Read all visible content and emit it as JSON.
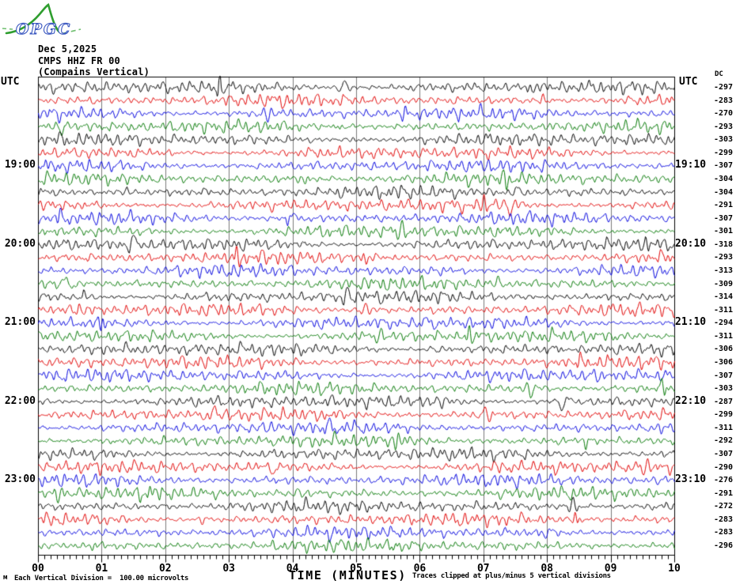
{
  "logo": {
    "text": "OPGC"
  },
  "header": {
    "date": "Dec 5,2025",
    "station": "CMPS HHZ FR 00",
    "component": "(Compains Vertical)"
  },
  "left_axis": {
    "title": "UTC",
    "labels": [
      {
        "row": 7,
        "text": "19:00"
      },
      {
        "row": 13,
        "text": "20:00"
      },
      {
        "row": 19,
        "text": "21:00"
      },
      {
        "row": 25,
        "text": "22:00"
      },
      {
        "row": 31,
        "text": "23:00"
      }
    ]
  },
  "right_axis": {
    "title": "UTC",
    "dc_header": "DC",
    "labels": [
      {
        "row": 7,
        "text": "19:10"
      },
      {
        "row": 13,
        "text": "20:10"
      },
      {
        "row": 19,
        "text": "21:10"
      },
      {
        "row": 25,
        "text": "22:10"
      },
      {
        "row": 31,
        "text": "23:10"
      }
    ],
    "dc_values": [
      -297,
      -283,
      -270,
      -293,
      -303,
      -299,
      -307,
      -304,
      -304,
      -291,
      -307,
      -301,
      -318,
      -293,
      -313,
      -309,
      -314,
      -311,
      -294,
      -311,
      -306,
      -306,
      -307,
      -303,
      -287,
      -299,
      -311,
      -292,
      -307,
      -290,
      -276,
      -291,
      -272,
      -283,
      -283,
      -296
    ]
  },
  "x_axis": {
    "title": "TIME (MINUTES)",
    "tick_labels": [
      "00",
      "01",
      "02",
      "03",
      "04",
      "05",
      "06",
      "07",
      "08",
      "09",
      "10"
    ],
    "clip_note": "Traces clipped at plus/minus 5 vertical divisions"
  },
  "footer": {
    "scale_note": "Each Vertical Division =  100.00 microvolts",
    "corner_mark": "м"
  },
  "colors": {
    "trace_cycle": [
      "#000000",
      "#e00000",
      "#0000dd",
      "#007700"
    ],
    "gridline": "#7a7a7a",
    "border": "#000000",
    "logo_green": "#2f9e2f",
    "logo_blue": "#3a57c0"
  },
  "chart_data": {
    "type": "line",
    "subtype": "seismogram-helicorder",
    "title": "CMPS HHZ FR 00 (Compains Vertical) — Dec 5,2025",
    "xlabel": "TIME (MINUTES)",
    "x_range_minutes": [
      0,
      10
    ],
    "x_major_tick_minutes": 1,
    "x_minor_tick_minutes": 0.1,
    "grid": "vertical gridline at every minute",
    "traces_per_hour": 6,
    "minutes_per_trace": 10,
    "amplitude_scale": "Each Vertical Division = 100.00 microvolts",
    "clipping": "Traces clipped at plus/minus 5 vertical divisions",
    "trace_rows": [
      {
        "row": 1,
        "start_utc": "18:00",
        "end_utc": "18:10",
        "color": "black",
        "dc_microvolts": -297
      },
      {
        "row": 2,
        "start_utc": "18:10",
        "end_utc": "18:20",
        "color": "red",
        "dc_microvolts": -283
      },
      {
        "row": 3,
        "start_utc": "18:20",
        "end_utc": "18:30",
        "color": "blue",
        "dc_microvolts": -270
      },
      {
        "row": 4,
        "start_utc": "18:30",
        "end_utc": "18:40",
        "color": "green",
        "dc_microvolts": -293
      },
      {
        "row": 5,
        "start_utc": "18:40",
        "end_utc": "18:50",
        "color": "black",
        "dc_microvolts": -303
      },
      {
        "row": 6,
        "start_utc": "18:50",
        "end_utc": "19:00",
        "color": "red",
        "dc_microvolts": -299
      },
      {
        "row": 7,
        "start_utc": "19:00",
        "end_utc": "19:10",
        "color": "blue",
        "dc_microvolts": -307
      },
      {
        "row": 8,
        "start_utc": "19:10",
        "end_utc": "19:20",
        "color": "green",
        "dc_microvolts": -304
      },
      {
        "row": 9,
        "start_utc": "19:20",
        "end_utc": "19:30",
        "color": "black",
        "dc_microvolts": -304
      },
      {
        "row": 10,
        "start_utc": "19:30",
        "end_utc": "19:40",
        "color": "red",
        "dc_microvolts": -291
      },
      {
        "row": 11,
        "start_utc": "19:40",
        "end_utc": "19:50",
        "color": "blue",
        "dc_microvolts": -307
      },
      {
        "row": 12,
        "start_utc": "19:50",
        "end_utc": "20:00",
        "color": "green",
        "dc_microvolts": -301
      },
      {
        "row": 13,
        "start_utc": "20:00",
        "end_utc": "20:10",
        "color": "black",
        "dc_microvolts": -318
      },
      {
        "row": 14,
        "start_utc": "20:10",
        "end_utc": "20:20",
        "color": "red",
        "dc_microvolts": -293
      },
      {
        "row": 15,
        "start_utc": "20:20",
        "end_utc": "20:30",
        "color": "blue",
        "dc_microvolts": -313
      },
      {
        "row": 16,
        "start_utc": "20:30",
        "end_utc": "20:40",
        "color": "green",
        "dc_microvolts": -309
      },
      {
        "row": 17,
        "start_utc": "20:40",
        "end_utc": "20:50",
        "color": "black",
        "dc_microvolts": -314
      },
      {
        "row": 18,
        "start_utc": "20:50",
        "end_utc": "21:00",
        "color": "red",
        "dc_microvolts": -311
      },
      {
        "row": 19,
        "start_utc": "21:00",
        "end_utc": "21:10",
        "color": "blue",
        "dc_microvolts": -294
      },
      {
        "row": 20,
        "start_utc": "21:10",
        "end_utc": "21:20",
        "color": "green",
        "dc_microvolts": -311
      },
      {
        "row": 21,
        "start_utc": "21:20",
        "end_utc": "21:30",
        "color": "black",
        "dc_microvolts": -306
      },
      {
        "row": 22,
        "start_utc": "21:30",
        "end_utc": "21:40",
        "color": "red",
        "dc_microvolts": -306
      },
      {
        "row": 23,
        "start_utc": "21:40",
        "end_utc": "21:50",
        "color": "blue",
        "dc_microvolts": -307
      },
      {
        "row": 24,
        "start_utc": "21:50",
        "end_utc": "22:00",
        "color": "green",
        "dc_microvolts": -303
      },
      {
        "row": 25,
        "start_utc": "22:00",
        "end_utc": "22:10",
        "color": "black",
        "dc_microvolts": -287
      },
      {
        "row": 26,
        "start_utc": "22:10",
        "end_utc": "22:20",
        "color": "red",
        "dc_microvolts": -299
      },
      {
        "row": 27,
        "start_utc": "22:20",
        "end_utc": "22:30",
        "color": "blue",
        "dc_microvolts": -311
      },
      {
        "row": 28,
        "start_utc": "22:30",
        "end_utc": "22:40",
        "color": "green",
        "dc_microvolts": -292
      },
      {
        "row": 29,
        "start_utc": "22:40",
        "end_utc": "22:50",
        "color": "black",
        "dc_microvolts": -307
      },
      {
        "row": 30,
        "start_utc": "22:50",
        "end_utc": "23:00",
        "color": "red",
        "dc_microvolts": -290
      },
      {
        "row": 31,
        "start_utc": "23:00",
        "end_utc": "23:10",
        "color": "blue",
        "dc_microvolts": -276
      },
      {
        "row": 32,
        "start_utc": "23:10",
        "end_utc": "23:20",
        "color": "green",
        "dc_microvolts": -291
      },
      {
        "row": 33,
        "start_utc": "23:20",
        "end_utc": "23:30",
        "color": "black",
        "dc_microvolts": -272
      },
      {
        "row": 34,
        "start_utc": "23:30",
        "end_utc": "23:40",
        "color": "red",
        "dc_microvolts": -283
      },
      {
        "row": 35,
        "start_utc": "23:40",
        "end_utc": "23:50",
        "color": "blue",
        "dc_microvolts": -283
      },
      {
        "row": 36,
        "start_utc": "23:50",
        "end_utc": "00:00",
        "color": "green",
        "dc_microvolts": -296
      }
    ]
  }
}
